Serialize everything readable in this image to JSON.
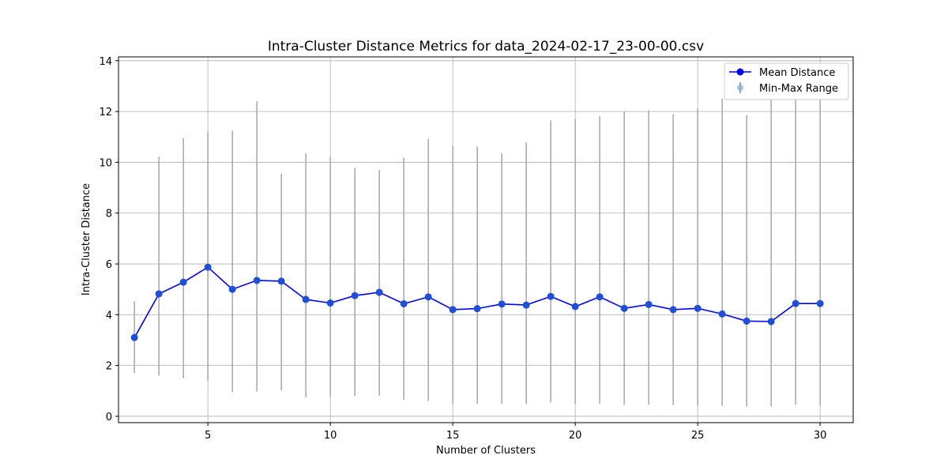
{
  "chart_data": {
    "type": "line",
    "title": "Intra-Cluster Distance Metrics for data_2024-02-17_23-00-00.csv",
    "xlabel": "Number of Clusters",
    "ylabel": "Intra-Cluster Distance",
    "xlim": [
      1.35,
      31.35
    ],
    "ylim": [
      -0.25,
      14.15
    ],
    "xticks": [
      5,
      10,
      15,
      20,
      25,
      30
    ],
    "yticks": [
      0,
      2,
      4,
      6,
      8,
      10,
      12,
      14
    ],
    "grid": true,
    "legend_position": "top-right",
    "x": [
      2,
      3,
      4,
      5,
      6,
      7,
      8,
      9,
      10,
      11,
      12,
      13,
      14,
      15,
      16,
      17,
      18,
      19,
      20,
      21,
      22,
      23,
      24,
      25,
      26,
      27,
      28,
      29,
      30
    ],
    "series": [
      {
        "name": "Mean Distance",
        "color": "#0000ff",
        "marker_color": "#1f4fd6",
        "values": [
          3.1,
          4.82,
          5.28,
          5.87,
          5.0,
          5.35,
          5.32,
          4.6,
          4.46,
          4.75,
          4.88,
          4.43,
          4.7,
          4.2,
          4.24,
          4.42,
          4.38,
          4.72,
          4.32,
          4.7,
          4.25,
          4.4,
          4.2,
          4.25,
          4.03,
          3.75,
          3.73,
          4.44,
          4.44
        ]
      },
      {
        "name": "Min-Max Range",
        "color": "#a6a6a6",
        "min": [
          1.7,
          1.6,
          1.5,
          1.4,
          0.95,
          0.98,
          1.03,
          0.75,
          0.78,
          0.8,
          0.82,
          0.65,
          0.6,
          0.5,
          0.5,
          0.5,
          0.48,
          0.55,
          0.5,
          0.5,
          0.45,
          0.45,
          0.45,
          0.42,
          0.42,
          0.38,
          0.38,
          0.45,
          0.42
        ],
        "max": [
          4.52,
          10.22,
          10.95,
          11.2,
          11.25,
          12.4,
          9.55,
          10.35,
          10.22,
          9.78,
          9.7,
          10.18,
          10.92,
          10.65,
          10.62,
          10.35,
          10.78,
          11.65,
          11.7,
          11.82,
          12.0,
          12.05,
          11.9,
          12.1,
          12.5,
          11.85,
          12.5,
          12.5,
          12.5
        ]
      }
    ]
  }
}
